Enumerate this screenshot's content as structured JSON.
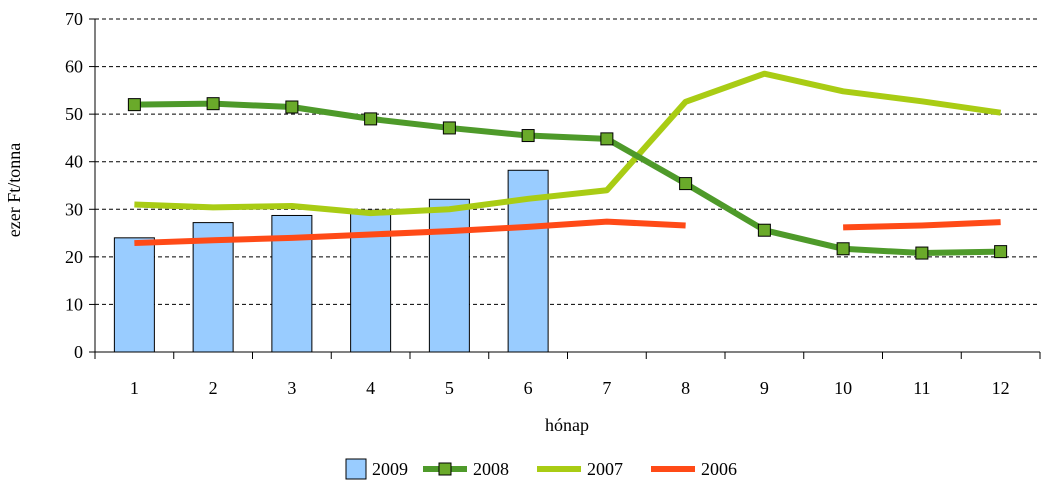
{
  "chart_data": {
    "type": "bar+line",
    "xlabel": "hónap",
    "ylabel": "ezer Ft/tonna",
    "ylim": [
      0,
      70
    ],
    "yticks": [
      0,
      10,
      20,
      30,
      40,
      50,
      60,
      70
    ],
    "categories": [
      "1",
      "2",
      "3",
      "4",
      "5",
      "6",
      "7",
      "8",
      "9",
      "10",
      "11",
      "12"
    ],
    "grid": "horizontal dashed",
    "legend_position": "bottom",
    "series": [
      {
        "name": "2009",
        "type": "bar",
        "color": "#99ccff",
        "values": [
          24,
          27.2,
          28.7,
          29.8,
          32.1,
          38.2,
          null,
          null,
          null,
          null,
          null,
          null
        ]
      },
      {
        "name": "2008",
        "type": "line",
        "marker": "square",
        "color": "#4e9a2a",
        "marker_color": "#6aaa2a",
        "values": [
          52,
          52.2,
          51.5,
          49,
          47.1,
          45.5,
          44.8,
          35.4,
          25.6,
          21.7,
          20.8,
          21.1
        ]
      },
      {
        "name": "2007",
        "type": "line",
        "color": "#a9cc14",
        "values": [
          31,
          30.4,
          30.7,
          29.2,
          30,
          32.2,
          34,
          52.6,
          58.5,
          54.8,
          52.7,
          50.3
        ]
      },
      {
        "name": "2006",
        "type": "line",
        "color": "#ff4a17",
        "values": [
          22.9,
          23.5,
          24,
          24.7,
          25.4,
          26.3,
          27.4,
          26.6,
          null,
          26.2,
          26.6,
          27.3
        ]
      }
    ]
  }
}
